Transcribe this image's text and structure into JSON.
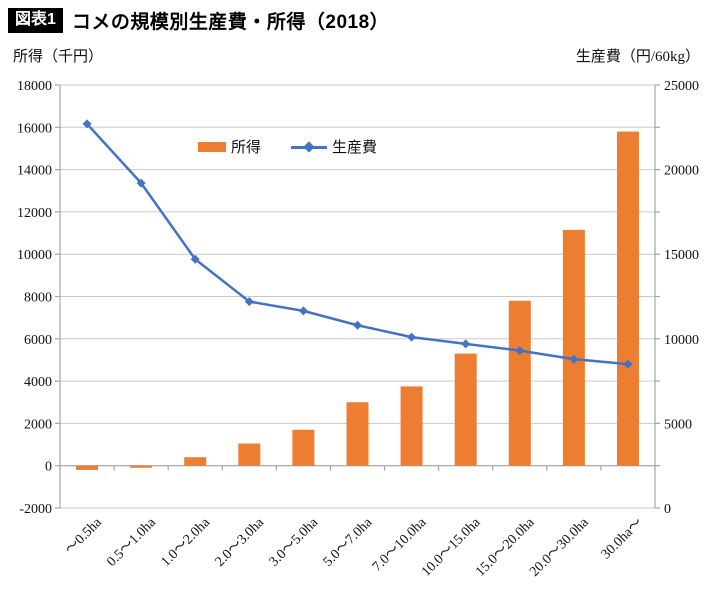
{
  "header": {
    "badge": "図表1",
    "title": "コメの規模別生産費・所得（2018）"
  },
  "captions": {
    "left": "所得（千円）",
    "right": "生産費（円/60kg）"
  },
  "legend": {
    "bar_label": "所得",
    "line_label": "生産費"
  },
  "colors": {
    "bar": "#ED7D31",
    "line": "#4472C4",
    "grid": "#C9C9C9",
    "axis": "#A6A6A6",
    "text": "#111111"
  },
  "chart_data": {
    "type": "bar",
    "subtype": "combo-bar-line-dual-axis",
    "title": "コメの規模別生産費・所得（2018）",
    "categories": [
      "～0.5ha",
      "0.5～1.0ha",
      "1.0～2.0ha",
      "2.0～3.0ha",
      "3.0～5.0ha",
      "5.0～7.0ha",
      "7.0～10.0ha",
      "10.0～15.0ha",
      "15.0～20.0ha",
      "20.0～30.0ha",
      "30.0ha～"
    ],
    "series": [
      {
        "name": "所得",
        "type": "bar",
        "axis": "left",
        "values": [
          -200,
          -100,
          400,
          1050,
          1700,
          3000,
          3750,
          5300,
          7800,
          11150,
          15800
        ]
      },
      {
        "name": "生産費",
        "type": "line",
        "axis": "right",
        "marker": "diamond",
        "values": [
          22700,
          19200,
          14700,
          12200,
          11650,
          10800,
          10100,
          9700,
          9300,
          8800,
          8500
        ]
      }
    ],
    "left_axis": {
      "caption": "所得（千円）",
      "min": -2000,
      "max": 18000,
      "step": 2000
    },
    "right_axis": {
      "caption": "生産費（円/60kg）",
      "min": 0,
      "max": 25000,
      "label_step": 5000,
      "tick_step": 2500
    },
    "grid": true,
    "legend_position": "top-center-inside",
    "x_label_rotation": -45
  }
}
